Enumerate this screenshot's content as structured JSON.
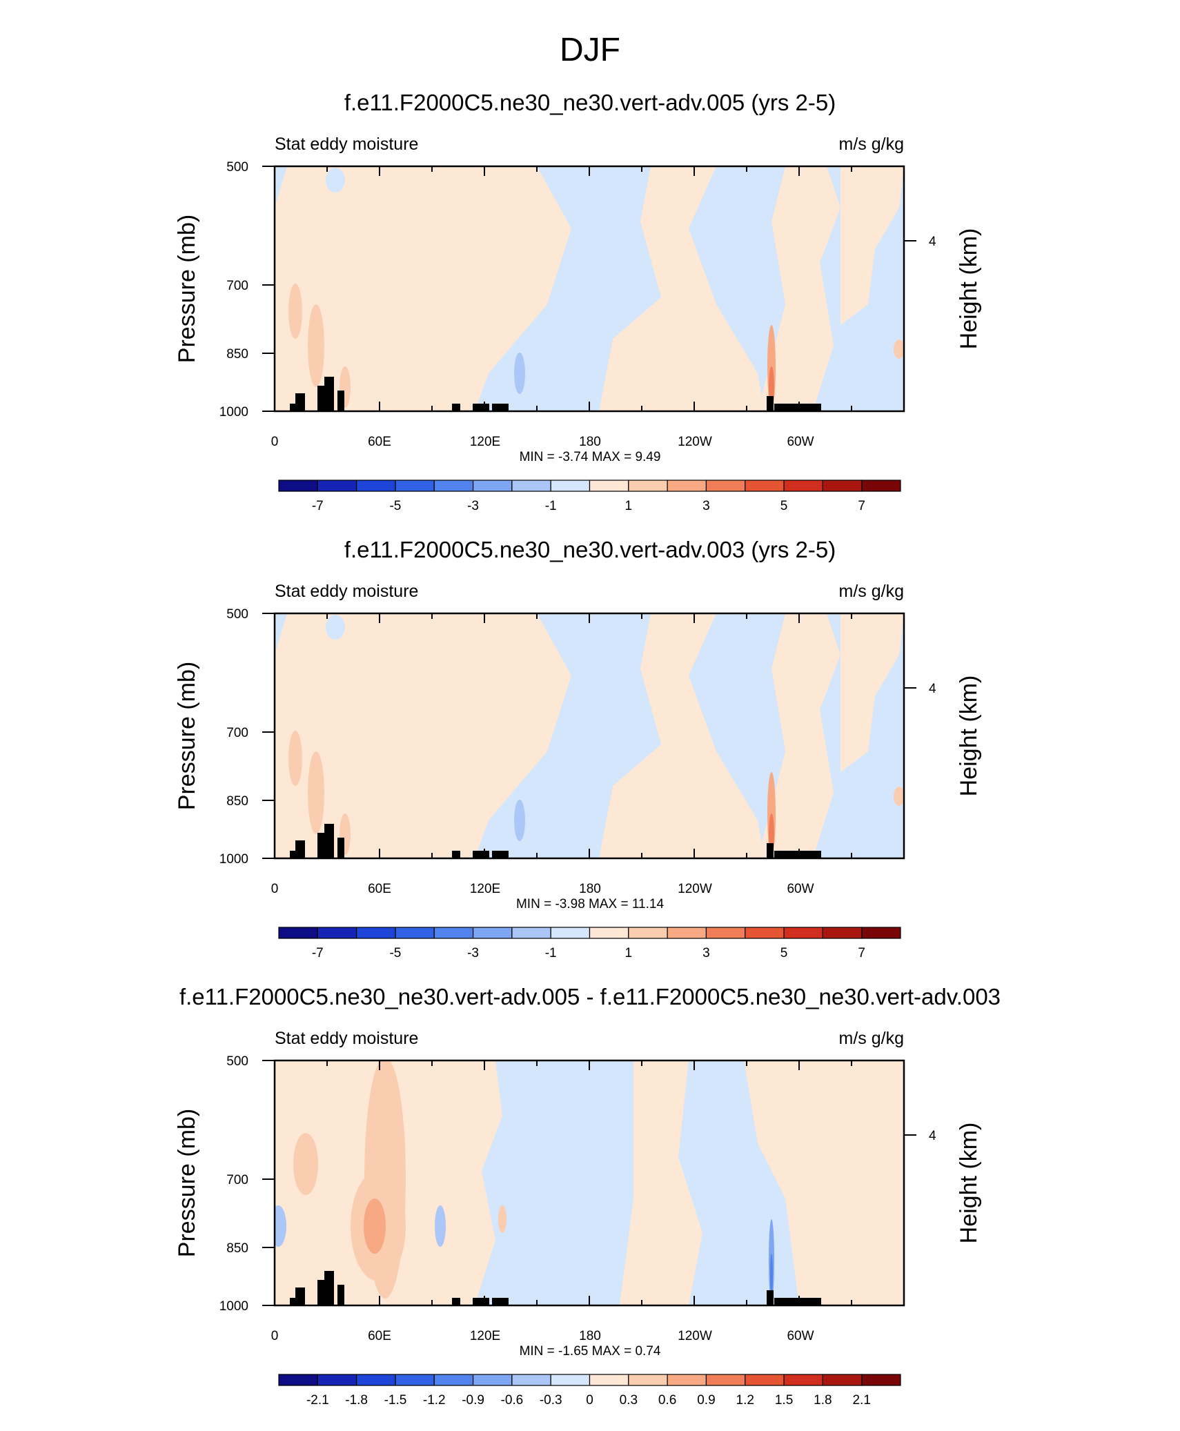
{
  "figure_title": "DJF",
  "colors": {
    "cmap": [
      "#0d0d84",
      "#1424b4",
      "#1f44d8",
      "#3062e6",
      "#5084ec",
      "#7ea6f2",
      "#aac7f7",
      "#d3e6fb",
      "#fde8d6",
      "#fbcdb0",
      "#f6a983",
      "#f07e58",
      "#e65533",
      "#cf2f1c",
      "#a8160f",
      "#7a0505"
    ],
    "land": "#000000"
  },
  "chart_data": [
    {
      "type": "heatmap",
      "title": "f.e11.F2000C5.ne30_ne30.vert-adv.005 (yrs 2-5)",
      "left_label": "Stat eddy moisture",
      "units": "m/s g/kg",
      "ylabel": "Pressure (mb)",
      "ylabel_right": "Height (km)",
      "right_ticks": [
        "4"
      ],
      "x_ticks": [
        "0",
        "60E",
        "120E",
        "180",
        "120W",
        "60W"
      ],
      "y_ticks": [
        "500",
        "700",
        "850",
        "1000"
      ],
      "stats": "MIN =  -3.74  MAX =   9.49",
      "colorbar_labels": [
        "-7",
        "-5",
        "-3",
        "-1",
        "1",
        "3",
        "5",
        "7"
      ],
      "xlim": [
        0,
        360
      ],
      "ylim": [
        1000,
        500
      ]
    },
    {
      "type": "heatmap",
      "title": "f.e11.F2000C5.ne30_ne30.vert-adv.003 (yrs 2-5)",
      "left_label": "Stat eddy moisture",
      "units": "m/s g/kg",
      "ylabel": "Pressure (mb)",
      "ylabel_right": "Height (km)",
      "right_ticks": [
        "4"
      ],
      "x_ticks": [
        "0",
        "60E",
        "120E",
        "180",
        "120W",
        "60W"
      ],
      "y_ticks": [
        "500",
        "700",
        "850",
        "1000"
      ],
      "stats": "MIN =  -3.98  MAX =  11.14",
      "colorbar_labels": [
        "-7",
        "-5",
        "-3",
        "-1",
        "1",
        "3",
        "5",
        "7"
      ],
      "xlim": [
        0,
        360
      ],
      "ylim": [
        1000,
        500
      ]
    },
    {
      "type": "heatmap",
      "title": "f.e11.F2000C5.ne30_ne30.vert-adv.005 - f.e11.F2000C5.ne30_ne30.vert-adv.003",
      "left_label": "Stat eddy moisture",
      "units": "m/s g/kg",
      "ylabel": "Pressure (mb)",
      "ylabel_right": "Height (km)",
      "right_ticks": [
        "4"
      ],
      "x_ticks": [
        "0",
        "60E",
        "120E",
        "180",
        "120W",
        "60W"
      ],
      "y_ticks": [
        "500",
        "700",
        "850",
        "1000"
      ],
      "stats": "MIN =  -1.65  MAX =   0.74",
      "colorbar_labels": [
        "-2.1",
        "-1.8",
        "-1.5",
        "-1.2",
        "-0.9",
        "-0.6",
        "-0.3",
        "0",
        "0.3",
        "0.6",
        "0.9",
        "1.2",
        "1.5",
        "1.8",
        "2.1"
      ],
      "xlim": [
        0,
        360
      ],
      "ylim": [
        1000,
        500
      ]
    }
  ]
}
